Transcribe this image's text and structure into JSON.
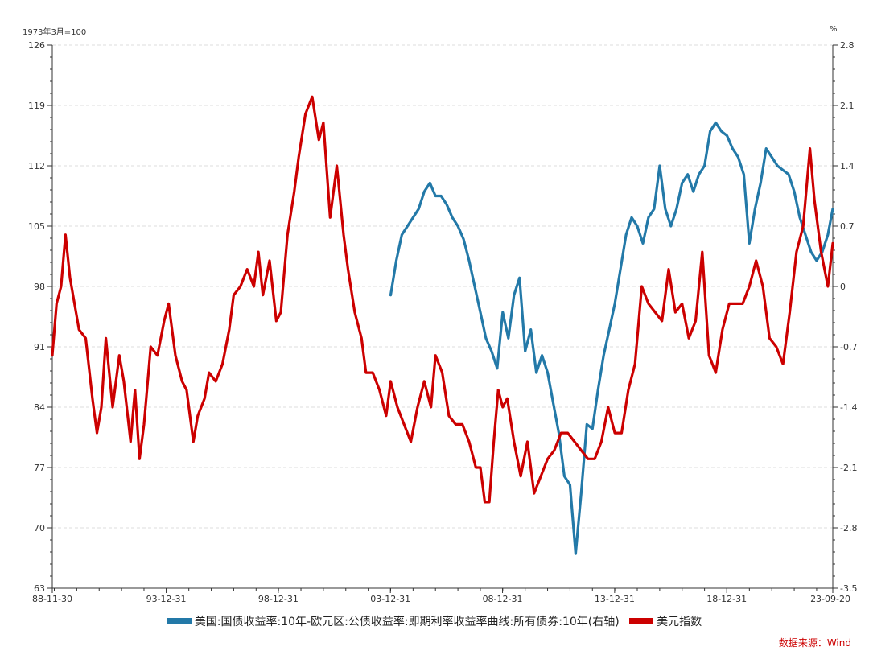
{
  "chart_data": {
    "type": "line",
    "y_left_unit": "1973年3月=100",
    "y_right_unit": "%",
    "y_left_range": [
      63,
      126
    ],
    "y_left_ticks": [
      "63",
      "70",
      "77",
      "84",
      "91",
      "98",
      "105",
      "112",
      "119",
      "126"
    ],
    "y_right_range": [
      -3.5,
      2.8
    ],
    "y_right_ticks": [
      "-3.5",
      "-2.8",
      "-2.1",
      "-1.4",
      "-0.7",
      "0",
      "0.7",
      "1.4",
      "2.1",
      "2.8"
    ],
    "x_range": [
      1988.91,
      2023.72
    ],
    "x_tick_labels": [
      {
        "label": "88-11-30",
        "x": 1988.91
      },
      {
        "label": "93-12-31",
        "x": 1993.99
      },
      {
        "label": "98-12-31",
        "x": 1998.99
      },
      {
        "label": "03-12-31",
        "x": 2003.99
      },
      {
        "label": "08-12-31",
        "x": 2008.99
      },
      {
        "label": "13-12-31",
        "x": 2013.99
      },
      {
        "label": "18-12-31",
        "x": 2018.99
      },
      {
        "label": "23-09-20",
        "x": 2023.72
      }
    ],
    "grid": true,
    "legend_position": "bottom",
    "source": "数据来源：Wind",
    "series": [
      {
        "name": "美国:国债收益率:10年-欧元区:公债收益率:即期利率收益率曲线:所有债券:10年(右轴)",
        "axis": "right",
        "color": "#2379a8",
        "x": [
          2004.0,
          2004.25,
          2004.5,
          2004.75,
          2005.0,
          2005.25,
          2005.5,
          2005.75,
          2006.0,
          2006.25,
          2006.5,
          2006.75,
          2007.0,
          2007.25,
          2007.5,
          2007.75,
          2008.0,
          2008.25,
          2008.5,
          2008.75,
          2009.0,
          2009.25,
          2009.5,
          2009.75,
          2010.0,
          2010.25,
          2010.5,
          2010.75,
          2011.0,
          2011.25,
          2011.5,
          2011.75,
          2012.0,
          2012.25,
          2012.5,
          2012.75,
          2013.0,
          2013.25,
          2013.5,
          2013.75,
          2014.0,
          2014.25,
          2014.5,
          2014.75,
          2015.0,
          2015.25,
          2015.5,
          2015.75,
          2016.0,
          2016.25,
          2016.5,
          2016.75,
          2017.0,
          2017.25,
          2017.5,
          2017.75,
          2018.0,
          2018.25,
          2018.5,
          2018.75,
          2019.0,
          2019.25,
          2019.5,
          2019.75,
          2020.0,
          2020.25,
          2020.5,
          2020.75,
          2021.0,
          2021.25,
          2021.5,
          2021.75,
          2022.0,
          2022.25,
          2022.5,
          2022.75,
          2023.0,
          2023.25,
          2023.5,
          2023.72
        ],
        "values": [
          -0.1,
          0.3,
          0.6,
          0.7,
          0.8,
          0.9,
          1.1,
          1.2,
          1.05,
          1.05,
          0.95,
          0.8,
          0.7,
          0.55,
          0.3,
          0.0,
          -0.3,
          -0.6,
          -0.75,
          -0.95,
          -0.3,
          -0.6,
          -0.1,
          0.1,
          -0.75,
          -0.5,
          -1.0,
          -0.8,
          -1.0,
          -1.35,
          -1.7,
          -2.2,
          -2.3,
          -3.1,
          -2.4,
          -1.6,
          -1.65,
          -1.2,
          -0.8,
          -0.5,
          -0.2,
          0.2,
          0.6,
          0.8,
          0.7,
          0.5,
          0.8,
          0.9,
          1.4,
          0.9,
          0.7,
          0.9,
          1.2,
          1.3,
          1.1,
          1.3,
          1.4,
          1.8,
          1.9,
          1.8,
          1.75,
          1.6,
          1.5,
          1.3,
          0.5,
          0.9,
          1.2,
          1.6,
          1.5,
          1.4,
          1.35,
          1.3,
          1.1,
          0.8,
          0.6,
          0.4,
          0.3,
          0.4,
          0.6,
          0.9
        ]
      },
      {
        "name": "美元指数",
        "axis": "left",
        "color": "#cc0000",
        "x": [
          1988.91,
          1989.1,
          1989.3,
          1989.5,
          1989.7,
          1989.9,
          1990.1,
          1990.4,
          1990.7,
          1990.9,
          1991.1,
          1991.3,
          1991.6,
          1991.9,
          1992.1,
          1992.4,
          1992.6,
          1992.8,
          1993.0,
          1993.3,
          1993.6,
          1993.9,
          1994.1,
          1994.4,
          1994.7,
          1994.9,
          1995.2,
          1995.4,
          1995.7,
          1995.9,
          1996.2,
          1996.5,
          1996.8,
          1997.0,
          1997.3,
          1997.6,
          1997.9,
          1998.1,
          1998.3,
          1998.6,
          1998.9,
          1999.1,
          1999.4,
          1999.7,
          1999.9,
          2000.2,
          2000.5,
          2000.8,
          2001.0,
          2001.3,
          2001.6,
          2001.9,
          2002.1,
          2002.4,
          2002.7,
          2002.9,
          2003.2,
          2003.5,
          2003.8,
          2004.0,
          2004.3,
          2004.6,
          2004.9,
          2005.2,
          2005.5,
          2005.8,
          2006.0,
          2006.3,
          2006.6,
          2006.9,
          2007.2,
          2007.5,
          2007.8,
          2008.0,
          2008.2,
          2008.4,
          2008.6,
          2008.8,
          2009.0,
          2009.2,
          2009.5,
          2009.8,
          2010.1,
          2010.4,
          2010.7,
          2011.0,
          2011.3,
          2011.6,
          2011.9,
          2012.2,
          2012.5,
          2012.8,
          2013.1,
          2013.4,
          2013.7,
          2014.0,
          2014.3,
          2014.6,
          2014.9,
          2015.2,
          2015.5,
          2015.8,
          2016.1,
          2016.4,
          2016.7,
          2017.0,
          2017.3,
          2017.6,
          2017.9,
          2018.2,
          2018.5,
          2018.8,
          2019.1,
          2019.4,
          2019.7,
          2020.0,
          2020.3,
          2020.6,
          2020.9,
          2021.2,
          2021.5,
          2021.8,
          2022.1,
          2022.4,
          2022.7,
          2022.9,
          2023.2,
          2023.5,
          2023.72
        ],
        "values": [
          90,
          96,
          98,
          104,
          99,
          96,
          93,
          92,
          85,
          81,
          84,
          92,
          84,
          90,
          87,
          80,
          86,
          78,
          82,
          91,
          90,
          94,
          96,
          90,
          87,
          86,
          80,
          83,
          85,
          88,
          87,
          89,
          93,
          97,
          98,
          100,
          98,
          102,
          97,
          101,
          94,
          95,
          104,
          109,
          113,
          118,
          120,
          115,
          117,
          106,
          112,
          104,
          100,
          95,
          92,
          88,
          88,
          86,
          83,
          87,
          84,
          82,
          80,
          84,
          87,
          84,
          90,
          88,
          83,
          82,
          82,
          80,
          77,
          77,
          73,
          73,
          80,
          86,
          84,
          85,
          80,
          76,
          80,
          74,
          76,
          78,
          79,
          81,
          81,
          80,
          79,
          78,
          78,
          80,
          84,
          81,
          81,
          86,
          89,
          98,
          96,
          95,
          94,
          100,
          95,
          96,
          92,
          94,
          102,
          90,
          88,
          93,
          96,
          96,
          96,
          98,
          101,
          98,
          92,
          91,
          89,
          95,
          102,
          105,
          114,
          108,
          102,
          98,
          103
        ]
      }
    ]
  }
}
